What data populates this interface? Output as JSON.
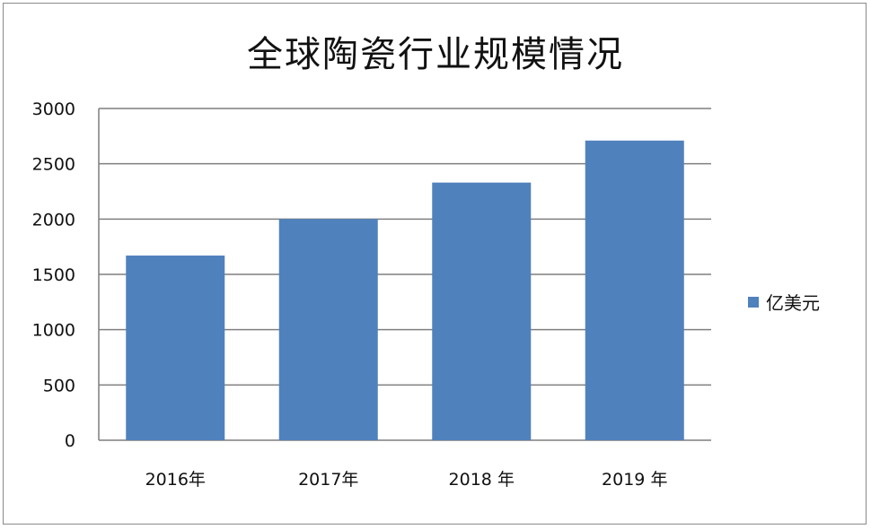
{
  "chart_data": {
    "type": "bar",
    "title": "全球陶瓷行业规模情况",
    "categories": [
      "2016年",
      "2017年",
      "2018 年",
      "2019 年"
    ],
    "series": [
      {
        "name": "亿美元",
        "values": [
          1670,
          2000,
          2330,
          2710
        ],
        "color": "#4f81bd"
      }
    ],
    "xlabel": "",
    "ylabel": "",
    "ylim": [
      0,
      3000
    ],
    "yticks": [
      "0",
      "500",
      "1000",
      "1500",
      "2000",
      "2500",
      "3000"
    ],
    "grid": true,
    "legend_position": "right"
  }
}
